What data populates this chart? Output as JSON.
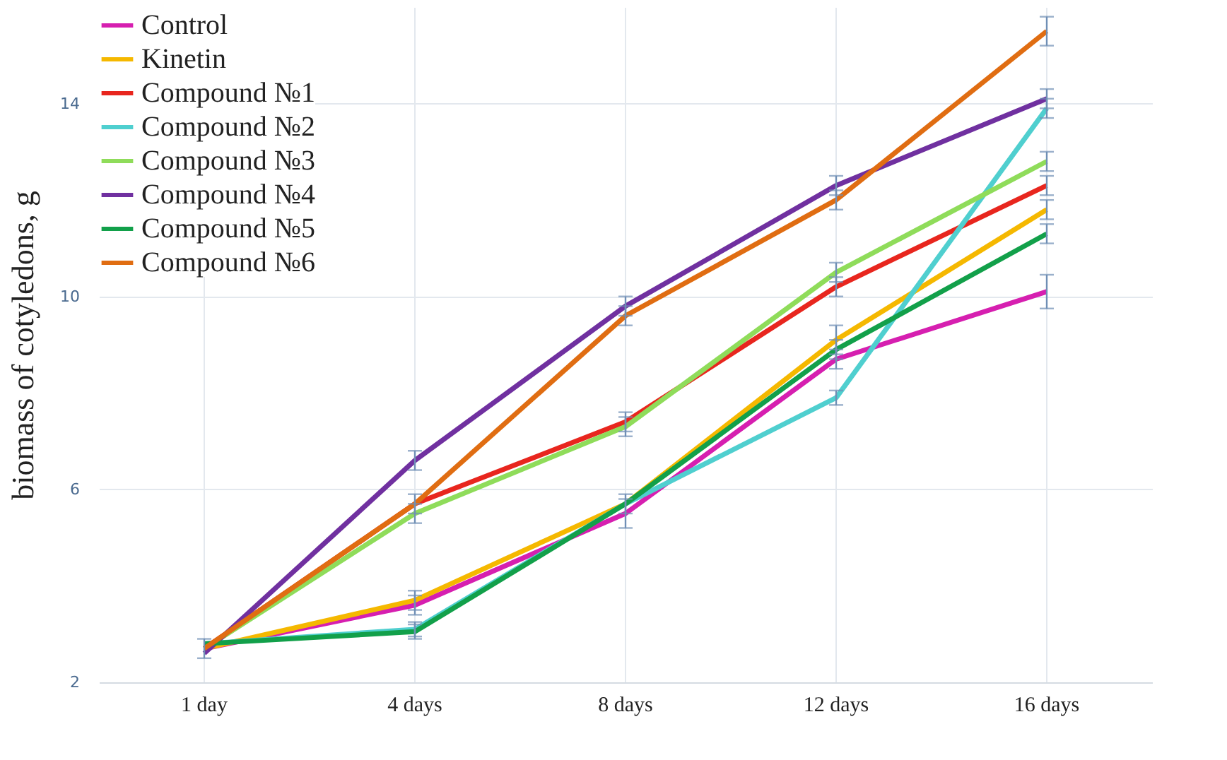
{
  "chart_data": {
    "type": "line",
    "ylabel": "biomass of cotyledons, g",
    "categories": [
      "1 day",
      "4 days",
      "8 days",
      "12 days",
      "16 days"
    ],
    "series": [
      {
        "name": "Control",
        "color": "#d61fb0",
        "values": [
          2.7,
          3.6,
          5.5,
          8.7,
          10.1
        ],
        "errors": [
          0.2,
          0.2,
          0.3,
          0.2,
          0.35
        ]
      },
      {
        "name": "Kinetin",
        "color": "#f5b800",
        "values": [
          2.7,
          3.7,
          5.7,
          9.1,
          11.8
        ],
        "errors": [
          null,
          0.2,
          null,
          0.3,
          0.2
        ]
      },
      {
        "name": "Compound №1",
        "color": "#e8261e",
        "values": [
          2.7,
          5.7,
          7.4,
          10.2,
          12.3
        ],
        "errors": [
          null,
          0.2,
          0.2,
          0.2,
          0.2
        ]
      },
      {
        "name": "Compound №2",
        "color": "#4fcfcf",
        "values": [
          2.8,
          3.1,
          5.7,
          7.9,
          13.9
        ],
        "errors": [
          null,
          0.15,
          0.2,
          0.15,
          0.2
        ]
      },
      {
        "name": "Compound №3",
        "color": "#8fdc5a",
        "values": [
          2.7,
          5.5,
          7.3,
          10.5,
          12.8
        ],
        "errors": [
          null,
          0.2,
          0.2,
          0.2,
          0.2
        ]
      },
      {
        "name": "Compound №4",
        "color": "#7030a0",
        "values": [
          2.6,
          6.6,
          9.8,
          12.3,
          14.1
        ],
        "errors": [
          null,
          0.2,
          0.2,
          0.2,
          0.2
        ]
      },
      {
        "name": "Compound №5",
        "color": "#12a04a",
        "values": [
          2.8,
          3.05,
          5.7,
          8.9,
          11.3
        ],
        "errors": [
          null,
          0.15,
          null,
          0.2,
          0.2
        ]
      },
      {
        "name": "Compound №6",
        "color": "#e06d12",
        "values": [
          2.7,
          5.7,
          9.6,
          12.0,
          15.5
        ],
        "errors": [
          null,
          null,
          0.2,
          0.2,
          0.3
        ]
      }
    ],
    "ylim": [
      2,
      16
    ],
    "yticks": [
      2,
      6,
      10,
      14
    ],
    "grid": true,
    "legend": "top left",
    "marker": "none",
    "line_style": "solid"
  }
}
